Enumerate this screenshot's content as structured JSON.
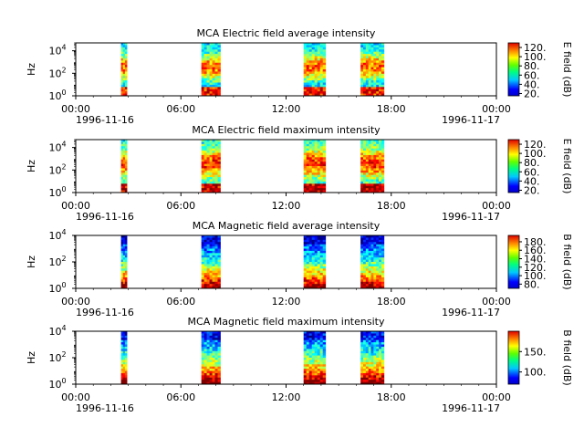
{
  "chart_data": [
    {
      "type": "heatmap",
      "title": "MCA  Electric field average intensity",
      "ylabel": "Hz",
      "xticks": [
        "00:00",
        "06:00",
        "12:00",
        "18:00",
        "00:00"
      ],
      "xdate_start": "1996-11-16",
      "xdate_end": "1996-11-17",
      "xlim": [
        "1996-11-16 00:00",
        "1996-11-17 00:00"
      ],
      "yscale": "log",
      "ylim": [
        1,
        50000
      ],
      "yticks": [
        "10^0",
        "10^2",
        "10^4"
      ],
      "colorbar_label": "E field (dB)",
      "colorbar_range": [
        15,
        130
      ],
      "colorbar_ticks": [
        "20.",
        "40.",
        "60.",
        "80.",
        "100.",
        "120."
      ],
      "intervals": [
        [
          "02:35",
          "02:55"
        ],
        [
          "07:10",
          "08:15"
        ],
        [
          "13:00",
          "14:15"
        ],
        [
          "16:15",
          "17:35"
        ]
      ]
    },
    {
      "type": "heatmap",
      "title": "MCA  Electric field maximum intensity",
      "ylabel": "Hz",
      "xticks": [
        "00:00",
        "06:00",
        "12:00",
        "18:00",
        "00:00"
      ],
      "xdate_start": "1996-11-16",
      "xdate_end": "1996-11-17",
      "xlim": [
        "1996-11-16 00:00",
        "1996-11-17 00:00"
      ],
      "yscale": "log",
      "ylim": [
        1,
        50000
      ],
      "yticks": [
        "10^0",
        "10^2",
        "10^4"
      ],
      "colorbar_label": "E field (dB)",
      "colorbar_range": [
        15,
        130
      ],
      "colorbar_ticks": [
        "20.",
        "40.",
        "60.",
        "80.",
        "100.",
        "120."
      ],
      "intervals": [
        [
          "02:35",
          "02:55"
        ],
        [
          "07:10",
          "08:15"
        ],
        [
          "13:00",
          "14:15"
        ],
        [
          "16:15",
          "17:35"
        ]
      ]
    },
    {
      "type": "heatmap",
      "title": "MCA  Magnetic field average intensity",
      "ylabel": "Hz",
      "xticks": [
        "00:00",
        "06:00",
        "12:00",
        "18:00",
        "00:00"
      ],
      "xdate_start": "1996-11-16",
      "xdate_end": "1996-11-17",
      "xlim": [
        "1996-11-16 00:00",
        "1996-11-17 00:00"
      ],
      "yscale": "log",
      "ylim": [
        1,
        10000
      ],
      "yticks": [
        "10^0",
        "10^2",
        "10^4"
      ],
      "colorbar_label": "B field (dB)",
      "colorbar_range": [
        70,
        195
      ],
      "colorbar_ticks": [
        "80.",
        "100.",
        "120.",
        "140.",
        "160.",
        "180."
      ],
      "intervals": [
        [
          "02:35",
          "02:55"
        ],
        [
          "07:10",
          "08:15"
        ],
        [
          "13:00",
          "14:15"
        ],
        [
          "16:15",
          "17:35"
        ]
      ]
    },
    {
      "type": "heatmap",
      "title": "MCA  Magnetic field maximum intensity",
      "ylabel": "Hz",
      "xticks": [
        "00:00",
        "06:00",
        "12:00",
        "18:00",
        "00:00"
      ],
      "xdate_start": "1996-11-16",
      "xdate_end": "1996-11-17",
      "xlim": [
        "1996-11-16 00:00",
        "1996-11-17 00:00"
      ],
      "yscale": "log",
      "ylim": [
        1,
        10000
      ],
      "yticks": [
        "10^0",
        "10^2",
        "10^4"
      ],
      "colorbar_label": "B field (dB)",
      "colorbar_range": [
        70,
        200
      ],
      "colorbar_ticks": [
        "100.",
        "150."
      ],
      "intervals": [
        [
          "02:35",
          "02:55"
        ],
        [
          "07:10",
          "08:15"
        ],
        [
          "13:00",
          "14:15"
        ],
        [
          "16:15",
          "17:35"
        ]
      ]
    }
  ]
}
